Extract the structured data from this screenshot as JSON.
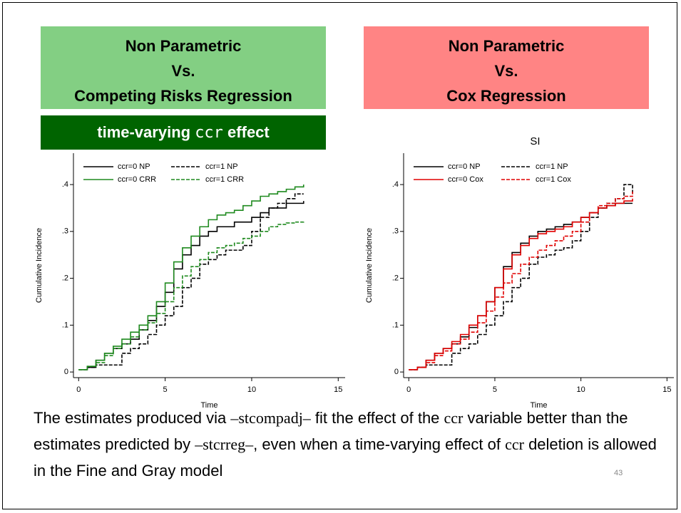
{
  "slide": {
    "left_header": [
      "Non Parametric",
      "Vs.",
      "Competing Risks Regression"
    ],
    "left_subheader": [
      "time-varying ",
      "ccr",
      " effect"
    ],
    "right_header": [
      "Non Parametric",
      "Vs.",
      "Cox Regression"
    ],
    "text": [
      "The estimates produced via ",
      "–stcompadj–",
      " fit the effect of the ",
      "ccr",
      " variable better than the estimates predicted by ",
      "–stcrreg–",
      ", even when a time-varying effect of ",
      "ccr",
      " deletion is allowed in the Fine and Gray model"
    ],
    "page_number": "43"
  },
  "chart_data": [
    {
      "type": "line",
      "step": true,
      "x_label": "Time",
      "y_label": "Cumulative Incidence",
      "x": [
        0,
        0.5,
        1,
        1.5,
        2,
        2.5,
        3,
        3.5,
        4,
        4.5,
        5,
        5.5,
        6,
        6.5,
        7,
        7.5,
        8,
        8.5,
        9,
        9.5,
        10,
        10.5,
        11,
        11.5,
        12,
        12.5,
        13
      ],
      "xlim": [
        -0.3,
        15.4
      ],
      "xticks": [
        0,
        5,
        10,
        15
      ],
      "ylim": [
        -0.012,
        0.467
      ],
      "yticks": [
        0,
        {
          "value": 0.1,
          "label": ".1"
        },
        {
          "value": 0.2,
          "label": ".2"
        },
        {
          "value": 0.3,
          "label": ".3"
        },
        {
          "value": 0.4,
          "label": ".4"
        }
      ],
      "legend": "top",
      "series": [
        {
          "name": "ccr=0 NP",
          "color": "#000000",
          "dash": false,
          "values": [
            0.005,
            0.01,
            0.025,
            0.04,
            0.05,
            0.06,
            0.07,
            0.09,
            0.11,
            0.14,
            0.17,
            0.22,
            0.25,
            0.27,
            0.29,
            0.3,
            0.31,
            0.31,
            0.32,
            0.32,
            0.33,
            0.34,
            0.35,
            0.35,
            0.36,
            0.36,
            0.365
          ]
        },
        {
          "name": "ccr=1 NP",
          "color": "#000000",
          "dash": true,
          "values": [
            0.005,
            0.01,
            0.015,
            0.015,
            0.015,
            0.04,
            0.05,
            0.06,
            0.08,
            0.1,
            0.12,
            0.14,
            0.18,
            0.2,
            0.23,
            0.24,
            0.25,
            0.26,
            0.26,
            0.27,
            0.3,
            0.33,
            0.35,
            0.36,
            0.37,
            0.38,
            0.38
          ]
        },
        {
          "name": "ccr=0 CRR",
          "color": "#1f8a1f",
          "dash": false,
          "values": [
            0.005,
            0.012,
            0.025,
            0.04,
            0.055,
            0.07,
            0.085,
            0.1,
            0.12,
            0.15,
            0.19,
            0.235,
            0.265,
            0.29,
            0.31,
            0.325,
            0.335,
            0.34,
            0.345,
            0.355,
            0.365,
            0.375,
            0.38,
            0.385,
            0.39,
            0.395,
            0.4
          ]
        },
        {
          "name": "ccr=1 CRR",
          "color": "#1f8a1f",
          "dash": true,
          "values": [
            0.005,
            0.012,
            0.02,
            0.035,
            0.05,
            0.06,
            0.075,
            0.09,
            0.105,
            0.125,
            0.15,
            0.18,
            0.205,
            0.225,
            0.24,
            0.255,
            0.265,
            0.27,
            0.275,
            0.285,
            0.29,
            0.3,
            0.31,
            0.315,
            0.318,
            0.32,
            0.322
          ]
        }
      ]
    },
    {
      "type": "line",
      "step": true,
      "title": "SI",
      "x_label": "Time",
      "y_label": "Cumulative Incidence",
      "x": [
        0,
        0.5,
        1,
        1.5,
        2,
        2.5,
        3,
        3.5,
        4,
        4.5,
        5,
        5.5,
        6,
        6.5,
        7,
        7.5,
        8,
        8.5,
        9,
        9.5,
        10,
        10.5,
        11,
        11.5,
        12,
        12.5,
        13
      ],
      "xlim": [
        -0.3,
        15.4
      ],
      "xticks": [
        0,
        5,
        10,
        15
      ],
      "ylim": [
        -0.012,
        0.467
      ],
      "yticks": [
        0,
        {
          "value": 0.1,
          "label": ".1"
        },
        {
          "value": 0.2,
          "label": ".2"
        },
        {
          "value": 0.3,
          "label": ".3"
        },
        {
          "value": 0.4,
          "label": ".4"
        }
      ],
      "legend": "top",
      "series": [
        {
          "name": "ccr=0 NP",
          "color": "#000000",
          "dash": false,
          "values": [
            0.005,
            0.01,
            0.025,
            0.04,
            0.05,
            0.06,
            0.075,
            0.095,
            0.12,
            0.15,
            0.18,
            0.225,
            0.255,
            0.275,
            0.29,
            0.3,
            0.305,
            0.31,
            0.315,
            0.32,
            0.33,
            0.34,
            0.35,
            0.355,
            0.36,
            0.36,
            0.36
          ]
        },
        {
          "name": "ccr=1 NP",
          "color": "#000000",
          "dash": true,
          "values": [
            0.005,
            0.01,
            0.015,
            0.015,
            0.015,
            0.04,
            0.05,
            0.06,
            0.08,
            0.1,
            0.12,
            0.15,
            0.18,
            0.2,
            0.23,
            0.245,
            0.25,
            0.26,
            0.265,
            0.28,
            0.3,
            0.33,
            0.35,
            0.36,
            0.37,
            0.4,
            0.38
          ]
        },
        {
          "name": "ccr=0 Cox",
          "color": "#e00000",
          "dash": false,
          "values": [
            0.005,
            0.01,
            0.025,
            0.04,
            0.05,
            0.065,
            0.08,
            0.1,
            0.12,
            0.15,
            0.18,
            0.22,
            0.25,
            0.27,
            0.285,
            0.295,
            0.3,
            0.305,
            0.31,
            0.32,
            0.33,
            0.34,
            0.35,
            0.355,
            0.36,
            0.365,
            0.37
          ]
        },
        {
          "name": "ccr=1 Cox",
          "color": "#e00000",
          "dash": true,
          "values": [
            0.005,
            0.01,
            0.02,
            0.035,
            0.045,
            0.06,
            0.07,
            0.085,
            0.105,
            0.13,
            0.16,
            0.19,
            0.21,
            0.23,
            0.245,
            0.26,
            0.27,
            0.28,
            0.29,
            0.3,
            0.32,
            0.34,
            0.355,
            0.36,
            0.37,
            0.375,
            0.385
          ]
        }
      ]
    }
  ]
}
